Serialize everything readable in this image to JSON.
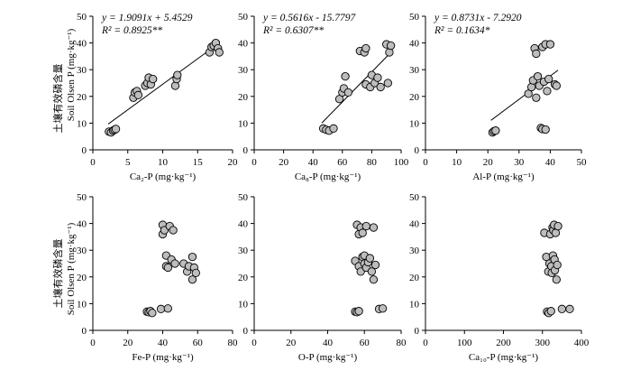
{
  "figure": {
    "ylabel_cn": "土壤有效磷含量",
    "ylabel_en": "Soil Olsen P (mg·kg⁻¹)",
    "point_color": "#bdbdbd"
  },
  "chart_data": [
    {
      "type": "scatter",
      "xlabel": "Ca₂-P (mg·kg⁻¹)",
      "xlim": [
        0,
        20
      ],
      "xticks": [
        0,
        5,
        10,
        15,
        20
      ],
      "ylim": [
        0,
        50
      ],
      "yticks": [
        0,
        10,
        20,
        30,
        40,
        50
      ],
      "equation": "y = 1.9091x + 5.4529",
      "r2": "R² = 0.8925**",
      "fit": {
        "slope": 1.9091,
        "intercept": 5.4529,
        "x_range": [
          2.2,
          17.8
        ]
      },
      "points": [
        [
          2.3,
          6.8
        ],
        [
          2.6,
          6.5
        ],
        [
          2.9,
          7.2
        ],
        [
          3.1,
          7.5
        ],
        [
          3.3,
          7.8
        ],
        [
          5.8,
          19.5
        ],
        [
          6.0,
          21.5
        ],
        [
          6.3,
          22.0
        ],
        [
          6.5,
          20.5
        ],
        [
          7.5,
          24.0
        ],
        [
          7.8,
          25.0
        ],
        [
          8.0,
          27.0
        ],
        [
          8.3,
          24.5
        ],
        [
          8.6,
          26.5
        ],
        [
          11.8,
          24.0
        ],
        [
          12.0,
          26.5
        ],
        [
          12.1,
          28.0
        ],
        [
          16.7,
          36.5
        ],
        [
          17.0,
          38.5
        ],
        [
          17.3,
          39.0
        ],
        [
          17.6,
          40.0
        ],
        [
          17.9,
          38.0
        ],
        [
          18.1,
          36.5
        ]
      ]
    },
    {
      "type": "scatter",
      "xlabel": "Ca₈-P (mg·kg⁻¹)",
      "xlim": [
        0,
        100
      ],
      "xticks": [
        0,
        20,
        40,
        60,
        80,
        100
      ],
      "ylim": [
        0,
        50
      ],
      "yticks": [
        0,
        10,
        20,
        30,
        40,
        50
      ],
      "equation": "y = 0.5616x - 15.7797",
      "r2": "R² = 0.6307**",
      "fit": {
        "slope": 0.5616,
        "intercept": -15.7797,
        "x_range": [
          46,
          92
        ]
      },
      "points": [
        [
          47,
          8.0
        ],
        [
          49,
          7.5
        ],
        [
          51,
          7.2
        ],
        [
          54,
          8.0
        ],
        [
          58,
          19.0
        ],
        [
          60,
          21.5
        ],
        [
          61,
          23.0
        ],
        [
          62,
          27.5
        ],
        [
          64,
          21.5
        ],
        [
          72,
          37.0
        ],
        [
          75,
          36.5
        ],
        [
          76,
          38.0
        ],
        [
          76,
          24.5
        ],
        [
          79,
          23.5
        ],
        [
          80,
          28.0
        ],
        [
          82,
          25.0
        ],
        [
          84,
          27.0
        ],
        [
          86,
          23.5
        ],
        [
          90,
          39.5
        ],
        [
          91,
          25.0
        ],
        [
          92,
          36.5
        ],
        [
          93,
          39.0
        ]
      ]
    },
    {
      "type": "scatter",
      "xlabel": "Al-P (mg·kg⁻¹)",
      "xlim": [
        0,
        50
      ],
      "xticks": [
        0,
        10,
        20,
        30,
        40,
        50
      ],
      "ylim": [
        0,
        50
      ],
      "yticks": [
        0,
        10,
        20,
        30,
        40,
        50
      ],
      "equation": "y = 0.8731x - 7.2920",
      "r2": "R² = 0.1634*",
      "fit": {
        "slope": 0.8731,
        "intercept": -7.292,
        "x_range": [
          21,
          42.5
        ]
      },
      "points": [
        [
          21.5,
          6.5
        ],
        [
          22.0,
          7.0
        ],
        [
          22.5,
          7.2
        ],
        [
          33.0,
          21.0
        ],
        [
          34.0,
          23.5
        ],
        [
          34.5,
          26.0
        ],
        [
          35.0,
          38.0
        ],
        [
          35.5,
          36.0
        ],
        [
          35.5,
          19.5
        ],
        [
          36.0,
          27.5
        ],
        [
          36.5,
          24.0
        ],
        [
          37.0,
          8.2
        ],
        [
          37.5,
          7.8
        ],
        [
          37.5,
          38.5
        ],
        [
          38.0,
          25.5
        ],
        [
          38.5,
          7.6
        ],
        [
          38.5,
          39.5
        ],
        [
          39.0,
          22.0
        ],
        [
          39.5,
          26.5
        ],
        [
          40.0,
          39.5
        ],
        [
          41.5,
          24.5
        ],
        [
          42.0,
          24.0
        ]
      ]
    },
    {
      "type": "scatter",
      "xlabel": "Fe-P (mg·kg⁻¹)",
      "xlim": [
        0,
        80
      ],
      "xticks": [
        0,
        20,
        40,
        60,
        80
      ],
      "ylim": [
        0,
        50
      ],
      "yticks": [
        0,
        10,
        20,
        30,
        40,
        50
      ],
      "points": [
        [
          31,
          7.0
        ],
        [
          32,
          6.8
        ],
        [
          33,
          7.2
        ],
        [
          34,
          6.5
        ],
        [
          39,
          8.0
        ],
        [
          40,
          39.5
        ],
        [
          40,
          36.0
        ],
        [
          41,
          37.5
        ],
        [
          42,
          28.0
        ],
        [
          42,
          24.0
        ],
        [
          43,
          8.2
        ],
        [
          43,
          23.5
        ],
        [
          44,
          39.0
        ],
        [
          45,
          26.5
        ],
        [
          46,
          37.5
        ],
        [
          47,
          25.0
        ],
        [
          52,
          25.0
        ],
        [
          54,
          22.0
        ],
        [
          55,
          24.0
        ],
        [
          57,
          19.0
        ],
        [
          57,
          27.5
        ],
        [
          58,
          23.5
        ],
        [
          59,
          21.5
        ]
      ]
    },
    {
      "type": "scatter",
      "xlabel": "O-P (mg·kg⁻¹)",
      "xlim": [
        0,
        80
      ],
      "xticks": [
        0,
        20,
        40,
        60,
        80
      ],
      "ylim": [
        0,
        50
      ],
      "yticks": [
        0,
        10,
        20,
        30,
        40,
        50
      ],
      "points": [
        [
          55,
          7.0
        ],
        [
          56,
          6.8
        ],
        [
          57,
          7.2
        ],
        [
          55,
          26.0
        ],
        [
          56,
          39.5
        ],
        [
          57,
          24.0
        ],
        [
          57,
          36.0
        ],
        [
          58,
          22.0
        ],
        [
          58,
          38.5
        ],
        [
          59,
          27.5
        ],
        [
          59,
          36.5
        ],
        [
          60,
          25.0
        ],
        [
          60,
          28.0
        ],
        [
          61,
          23.5
        ],
        [
          61,
          39.0
        ],
        [
          62,
          25.5
        ],
        [
          63,
          27.0
        ],
        [
          64,
          22.0
        ],
        [
          65,
          19.0
        ],
        [
          65,
          38.5
        ],
        [
          66,
          24.5
        ],
        [
          68,
          8.0
        ],
        [
          70,
          8.2
        ]
      ]
    },
    {
      "type": "scatter",
      "xlabel": "Ca₁₀-P (mg·kg⁻¹)",
      "xlim": [
        0,
        400
      ],
      "xticks": [
        0,
        100,
        200,
        300,
        400
      ],
      "ylim": [
        0,
        50
      ],
      "yticks": [
        0,
        10,
        20,
        30,
        40,
        50
      ],
      "points": [
        [
          305,
          36.5
        ],
        [
          310,
          27.5
        ],
        [
          312,
          7.0
        ],
        [
          315,
          22.0
        ],
        [
          316,
          6.5
        ],
        [
          318,
          25.0
        ],
        [
          320,
          36.0
        ],
        [
          322,
          7.2
        ],
        [
          323,
          24.0
        ],
        [
          324,
          21.5
        ],
        [
          326,
          38.5
        ],
        [
          327,
          28.0
        ],
        [
          328,
          37.5
        ],
        [
          330,
          39.5
        ],
        [
          331,
          26.5
        ],
        [
          332,
          22.5
        ],
        [
          334,
          36.5
        ],
        [
          336,
          19.0
        ],
        [
          338,
          24.5
        ],
        [
          340,
          39.0
        ],
        [
          350,
          8.0
        ],
        [
          370,
          8.0
        ]
      ]
    }
  ]
}
